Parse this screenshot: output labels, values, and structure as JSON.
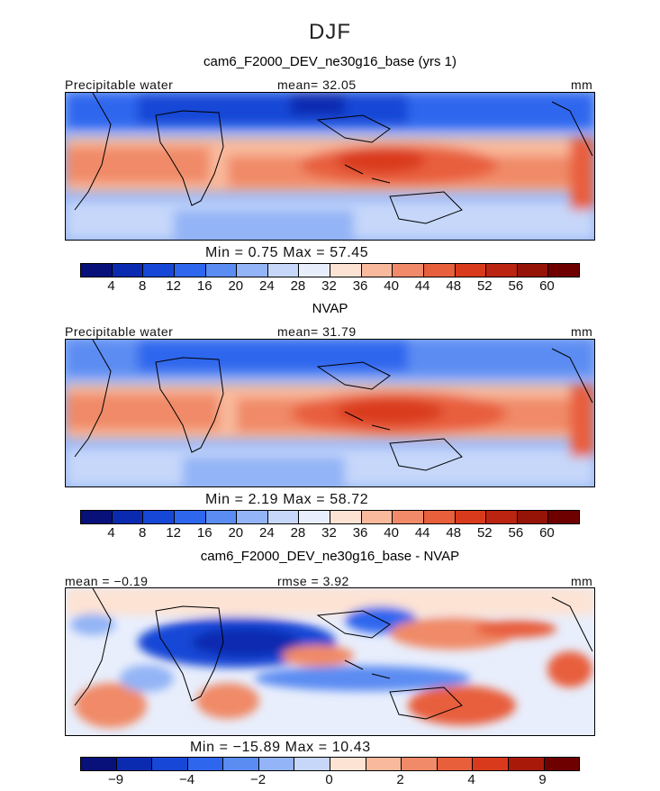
{
  "figure": {
    "season": "DJF"
  },
  "panels": [
    {
      "title": "cam6_F2000_DEV_ne30g16_base (yrs 1)",
      "left_label": "Precipitable water",
      "center_label": "mean=  32.05",
      "right_label": "mm",
      "minmax": "Min =    0.75  Max =   57.45",
      "tick_labels": [
        "4",
        "8",
        "12",
        "16",
        "20",
        "24",
        "28",
        "32",
        "36",
        "40",
        "44",
        "48",
        "52",
        "56",
        "60"
      ]
    },
    {
      "title": "NVAP",
      "left_label": "Precipitable water",
      "center_label": "mean=  31.79",
      "right_label": "mm",
      "minmax": "Min =    2.19  Max =   58.72",
      "tick_labels": [
        "4",
        "8",
        "12",
        "16",
        "20",
        "24",
        "28",
        "32",
        "36",
        "40",
        "44",
        "48",
        "52",
        "56",
        "60"
      ]
    },
    {
      "title": "cam6_F2000_DEV_ne30g16_base - NVAP",
      "left_label": "mean =  −0.19",
      "center_label": "rmse =    3.92",
      "right_label": "mm",
      "minmax": "Min = −15.89  Max =   10.43",
      "tick_labels": [
        "−9",
        "−4",
        "−2",
        "0",
        "2",
        "4",
        "9"
      ]
    }
  ],
  "colors": {
    "palette16": [
      "#08107a",
      "#0a2bb0",
      "#1747d6",
      "#2f66ee",
      "#5b8cf2",
      "#93b4f6",
      "#c6d7fa",
      "#e8eefc",
      "#fde3d4",
      "#f9b99c",
      "#f08a68",
      "#e85f3c",
      "#d93a1c",
      "#bb2410",
      "#961307",
      "#6e0000"
    ],
    "palette14": [
      "#08107a",
      "#0a2bb0",
      "#1747d6",
      "#2f66ee",
      "#5b8cf2",
      "#93b4f6",
      "#c6d7fa",
      "#fde3d4",
      "#f9b99c",
      "#f08a68",
      "#e85f3c",
      "#d93a1c",
      "#a8190a",
      "#6e0000"
    ]
  },
  "chart_data": [
    {
      "type": "heatmap",
      "title": "cam6_F2000_DEV_ne30g16_base (yrs 1)",
      "variable": "Precipitable water",
      "units": "mm",
      "mean": 32.05,
      "min": 0.75,
      "max": 57.45,
      "levels": [
        4,
        8,
        12,
        16,
        20,
        24,
        28,
        32,
        36,
        40,
        44,
        48,
        52,
        56,
        60
      ]
    },
    {
      "type": "heatmap",
      "title": "NVAP",
      "variable": "Precipitable water",
      "units": "mm",
      "mean": 31.79,
      "min": 2.19,
      "max": 58.72,
      "levels": [
        4,
        8,
        12,
        16,
        20,
        24,
        28,
        32,
        36,
        40,
        44,
        48,
        52,
        56,
        60
      ]
    },
    {
      "type": "heatmap",
      "title": "cam6_F2000_DEV_ne30g16_base - NVAP",
      "units": "mm",
      "mean": -0.19,
      "rmse": 3.92,
      "min": -15.89,
      "max": 10.43,
      "levels": [
        -9,
        -4,
        -2,
        0,
        2,
        4,
        9
      ]
    }
  ]
}
